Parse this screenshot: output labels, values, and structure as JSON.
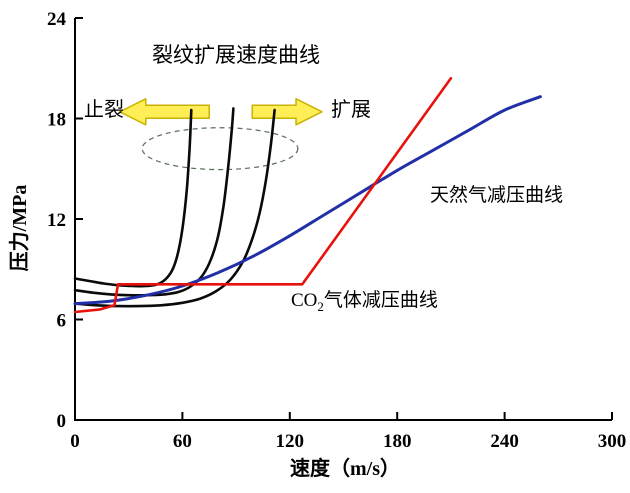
{
  "chart_data": {
    "type": "line",
    "title": "",
    "xlabel": "速度（m/s）",
    "ylabel": "压力/MPa",
    "xlim": [
      0,
      300
    ],
    "ylim": [
      0,
      24
    ],
    "xticks": [
      0,
      60,
      120,
      180,
      240,
      300
    ],
    "yticks": [
      0,
      6,
      12,
      18,
      24
    ],
    "grid": false,
    "legend_position": "none",
    "series": [
      {
        "id": "crack-curve-1",
        "name": "裂纹扩展速度曲线-1",
        "color": "#0a0a0a",
        "width": 2.6,
        "smooth": true,
        "points": [
          [
            0,
            8.45
          ],
          [
            8,
            8.3
          ],
          [
            16,
            8.15
          ],
          [
            24,
            8.05
          ],
          [
            32,
            8.0
          ],
          [
            40,
            8.0
          ],
          [
            46,
            8.1
          ],
          [
            51,
            8.45
          ],
          [
            55,
            9.1
          ],
          [
            58,
            10.2
          ],
          [
            60.5,
            11.8
          ],
          [
            62.5,
            13.8
          ],
          [
            64,
            16.2
          ],
          [
            65,
            18.5
          ]
        ]
      },
      {
        "id": "crack-curve-2",
        "name": "裂纹扩展速度曲线-2",
        "color": "#0a0a0a",
        "width": 2.6,
        "smooth": true,
        "points": [
          [
            0,
            7.75
          ],
          [
            10,
            7.6
          ],
          [
            20,
            7.5
          ],
          [
            30,
            7.45
          ],
          [
            40,
            7.45
          ],
          [
            50,
            7.5
          ],
          [
            58,
            7.65
          ],
          [
            65,
            8.0
          ],
          [
            71,
            8.6
          ],
          [
            76,
            9.6
          ],
          [
            80,
            11.0
          ],
          [
            83,
            12.8
          ],
          [
            85.5,
            15.0
          ],
          [
            87.5,
            17.2
          ],
          [
            88.5,
            18.6
          ]
        ]
      },
      {
        "id": "crack-curve-3",
        "name": "裂纹扩展速度曲线-3",
        "color": "#0a0a0a",
        "width": 2.6,
        "smooth": true,
        "points": [
          [
            0,
            6.95
          ],
          [
            12,
            6.85
          ],
          [
            24,
            6.8
          ],
          [
            36,
            6.8
          ],
          [
            48,
            6.85
          ],
          [
            60,
            7.0
          ],
          [
            70,
            7.25
          ],
          [
            79,
            7.7
          ],
          [
            87,
            8.4
          ],
          [
            94,
            9.5
          ],
          [
            99,
            10.8
          ],
          [
            103,
            12.3
          ],
          [
            106.5,
            14.2
          ],
          [
            109.5,
            16.5
          ],
          [
            111.5,
            18.5
          ]
        ]
      },
      {
        "id": "natural-gas-curve",
        "name": "天然气减压曲线",
        "color": "#2230a8",
        "width": 3,
        "smooth": true,
        "points": [
          [
            0,
            6.95
          ],
          [
            20,
            7.1
          ],
          [
            40,
            7.45
          ],
          [
            60,
            8.0
          ],
          [
            80,
            8.8
          ],
          [
            100,
            9.8
          ],
          [
            120,
            11.0
          ],
          [
            140,
            12.3
          ],
          [
            160,
            13.6
          ],
          [
            180,
            14.9
          ],
          [
            200,
            16.1
          ],
          [
            220,
            17.3
          ],
          [
            240,
            18.5
          ],
          [
            260,
            19.3
          ]
        ]
      },
      {
        "id": "co2-curve",
        "name": "CO2气体减压曲线",
        "color": "#e8120c",
        "width": 2.6,
        "smooth": false,
        "points": [
          [
            0,
            6.45
          ],
          [
            14,
            6.6
          ],
          [
            22,
            6.85
          ],
          [
            24,
            8.1
          ],
          [
            127,
            8.1
          ],
          [
            210,
            20.4
          ]
        ]
      }
    ],
    "annotations": {
      "curve_group_label": "裂纹扩展速度曲线",
      "arrest_label": "止裂",
      "propagate_label": "扩展",
      "natural_gas_label": "天然气减压曲线",
      "co2_prefix": "CO",
      "co2_sub": "2",
      "co2_suffix": "气体减压曲线"
    },
    "arrows": {
      "fill": "#ffee55",
      "stroke": "#c9b200",
      "items": [
        {
          "id": "arrest-arrow",
          "y": 18.4,
          "shaft_x": 75,
          "tip_x": 25
        },
        {
          "id": "propagation-arrow",
          "y": 18.4,
          "shaft_x": 99,
          "tip_x": 138
        }
      ]
    },
    "ellipse": {
      "cx": 81,
      "cy": 16.2,
      "rx": 43.5,
      "ry": 1.25,
      "color": "#5a6e5a"
    }
  }
}
